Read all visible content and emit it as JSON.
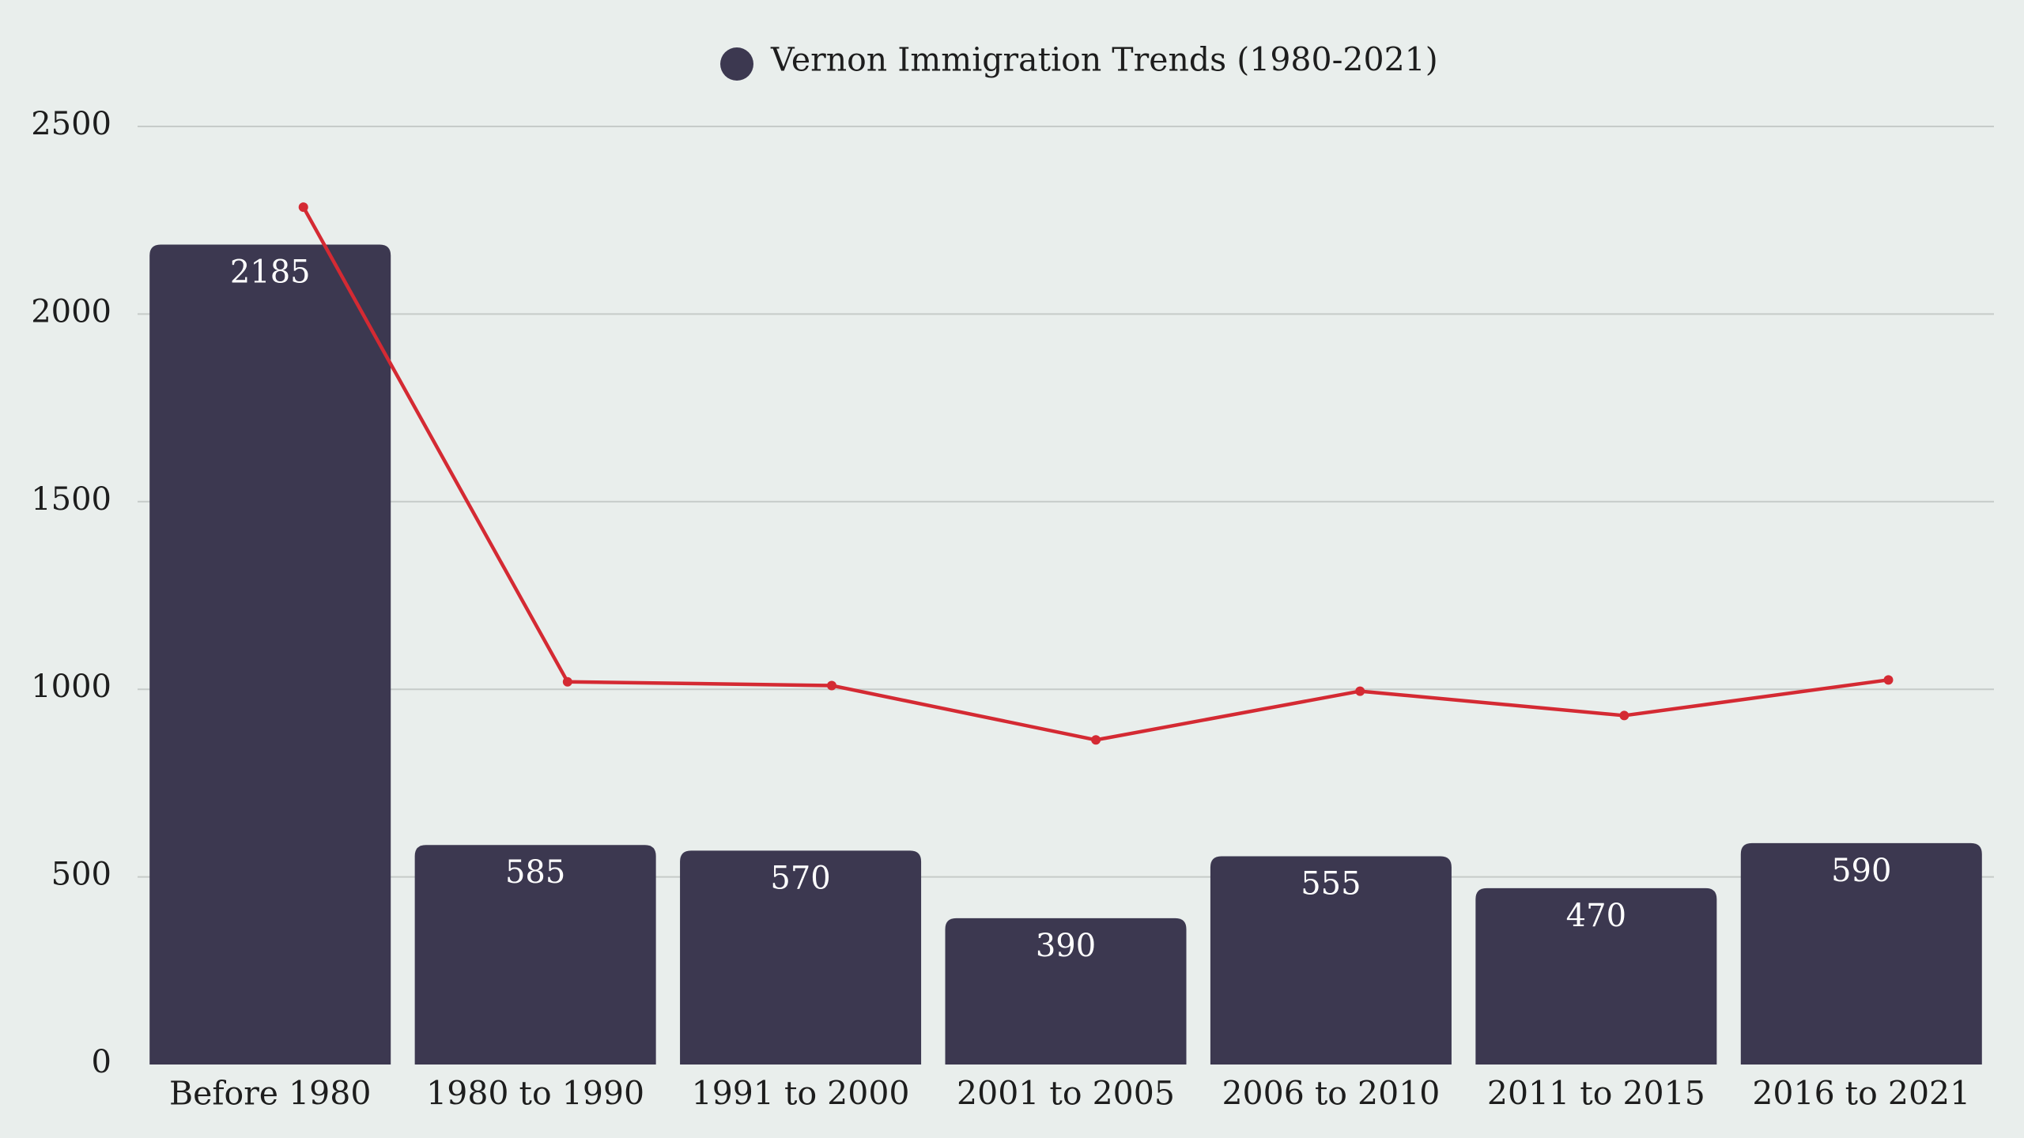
{
  "chart_data": {
    "type": "bar",
    "categories": [
      "Before 1980",
      "1980 to 1990",
      "1991 to 2000",
      "2001 to 2005",
      "2006 to 2010",
      "2011 to 2015",
      "2016 to 2021"
    ],
    "series": [
      {
        "name": "Vernon Immigration Trends (1980-2021)",
        "type": "bar",
        "values": [
          2185,
          585,
          570,
          390,
          555,
          470,
          590
        ],
        "color": "#3c3850"
      },
      {
        "type": "line",
        "values": [
          2285,
          1020,
          1010,
          865,
          995,
          930,
          1025
        ],
        "color": "#d42a33"
      }
    ],
    "yticks": [
      "0",
      "500",
      "1000",
      "1500",
      "2000",
      "2500"
    ],
    "ylim": [
      0,
      2500
    ],
    "grid": true,
    "legend": "top-center",
    "title": "",
    "xlabel": "",
    "ylabel": ""
  }
}
